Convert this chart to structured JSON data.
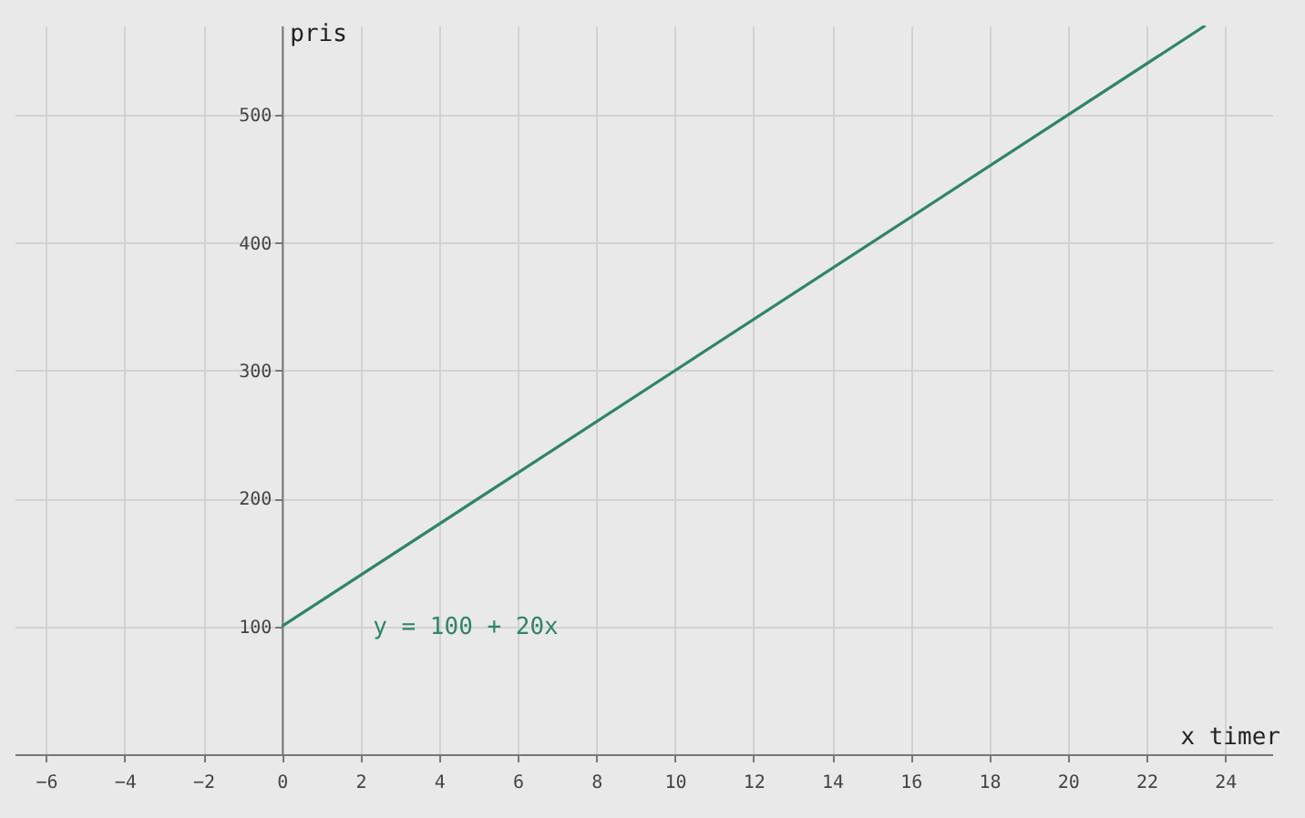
{
  "chart_data": {
    "type": "line",
    "xlabel": "x timer",
    "ylabel": "pris",
    "x": [
      0,
      23.5
    ],
    "series": [
      {
        "name": "y = 100 + 20x",
        "color": "#2f8566",
        "values": [
          100,
          570
        ]
      }
    ],
    "xlim": [
      -6.8,
      25.2
    ],
    "ylim": [
      0,
      570
    ],
    "xticks": [
      -6,
      -4,
      -2,
      0,
      2,
      4,
      6,
      8,
      10,
      12,
      14,
      16,
      18,
      20,
      22,
      24
    ],
    "yticks": [
      100,
      200,
      300,
      400,
      500
    ],
    "grid": true,
    "marker": "none",
    "line_style": "solid"
  }
}
